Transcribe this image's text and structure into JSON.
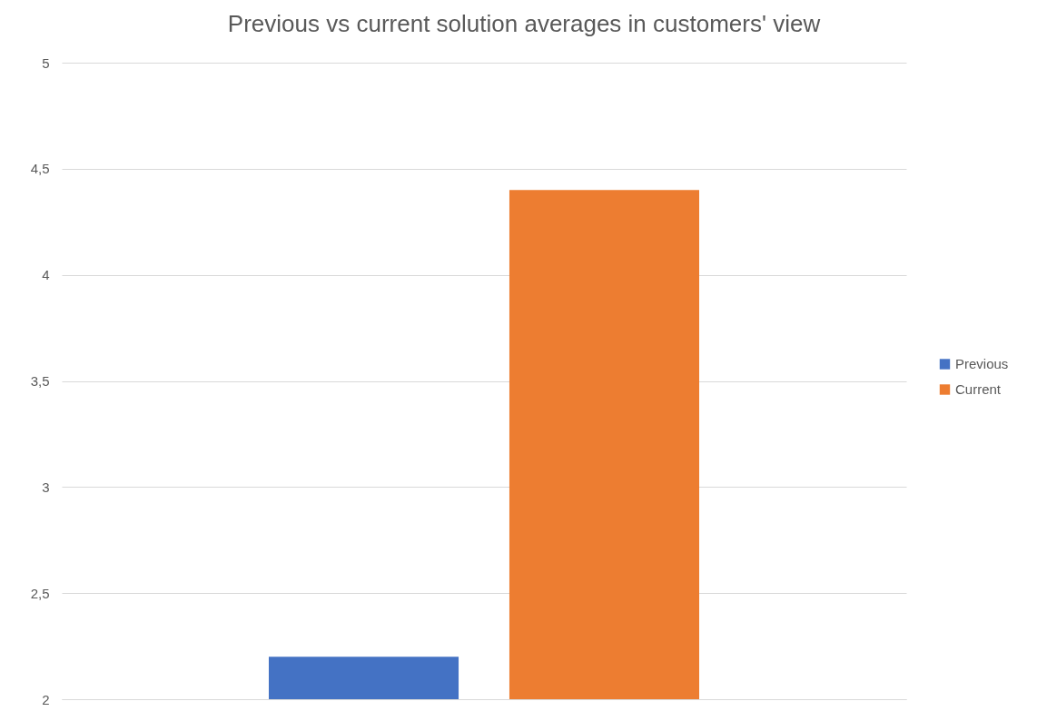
{
  "chart_data": {
    "type": "bar",
    "title": "Previous vs current solution averages in customers' view",
    "categories": [
      null
    ],
    "series": [
      {
        "name": "Previous",
        "color": "#4472c4",
        "values": [
          2.2
        ]
      },
      {
        "name": "Current",
        "color": "#ed7d31",
        "values": [
          4.4
        ]
      }
    ],
    "ylim": [
      2,
      5
    ],
    "yticks": [
      2,
      {
        "value": 2.5,
        "label": "2,5"
      },
      3,
      {
        "value": 3.5,
        "label": "3,5"
      },
      4,
      {
        "value": 4.5,
        "label": "4,5"
      },
      5
    ],
    "grid": "y",
    "legend": "right"
  }
}
